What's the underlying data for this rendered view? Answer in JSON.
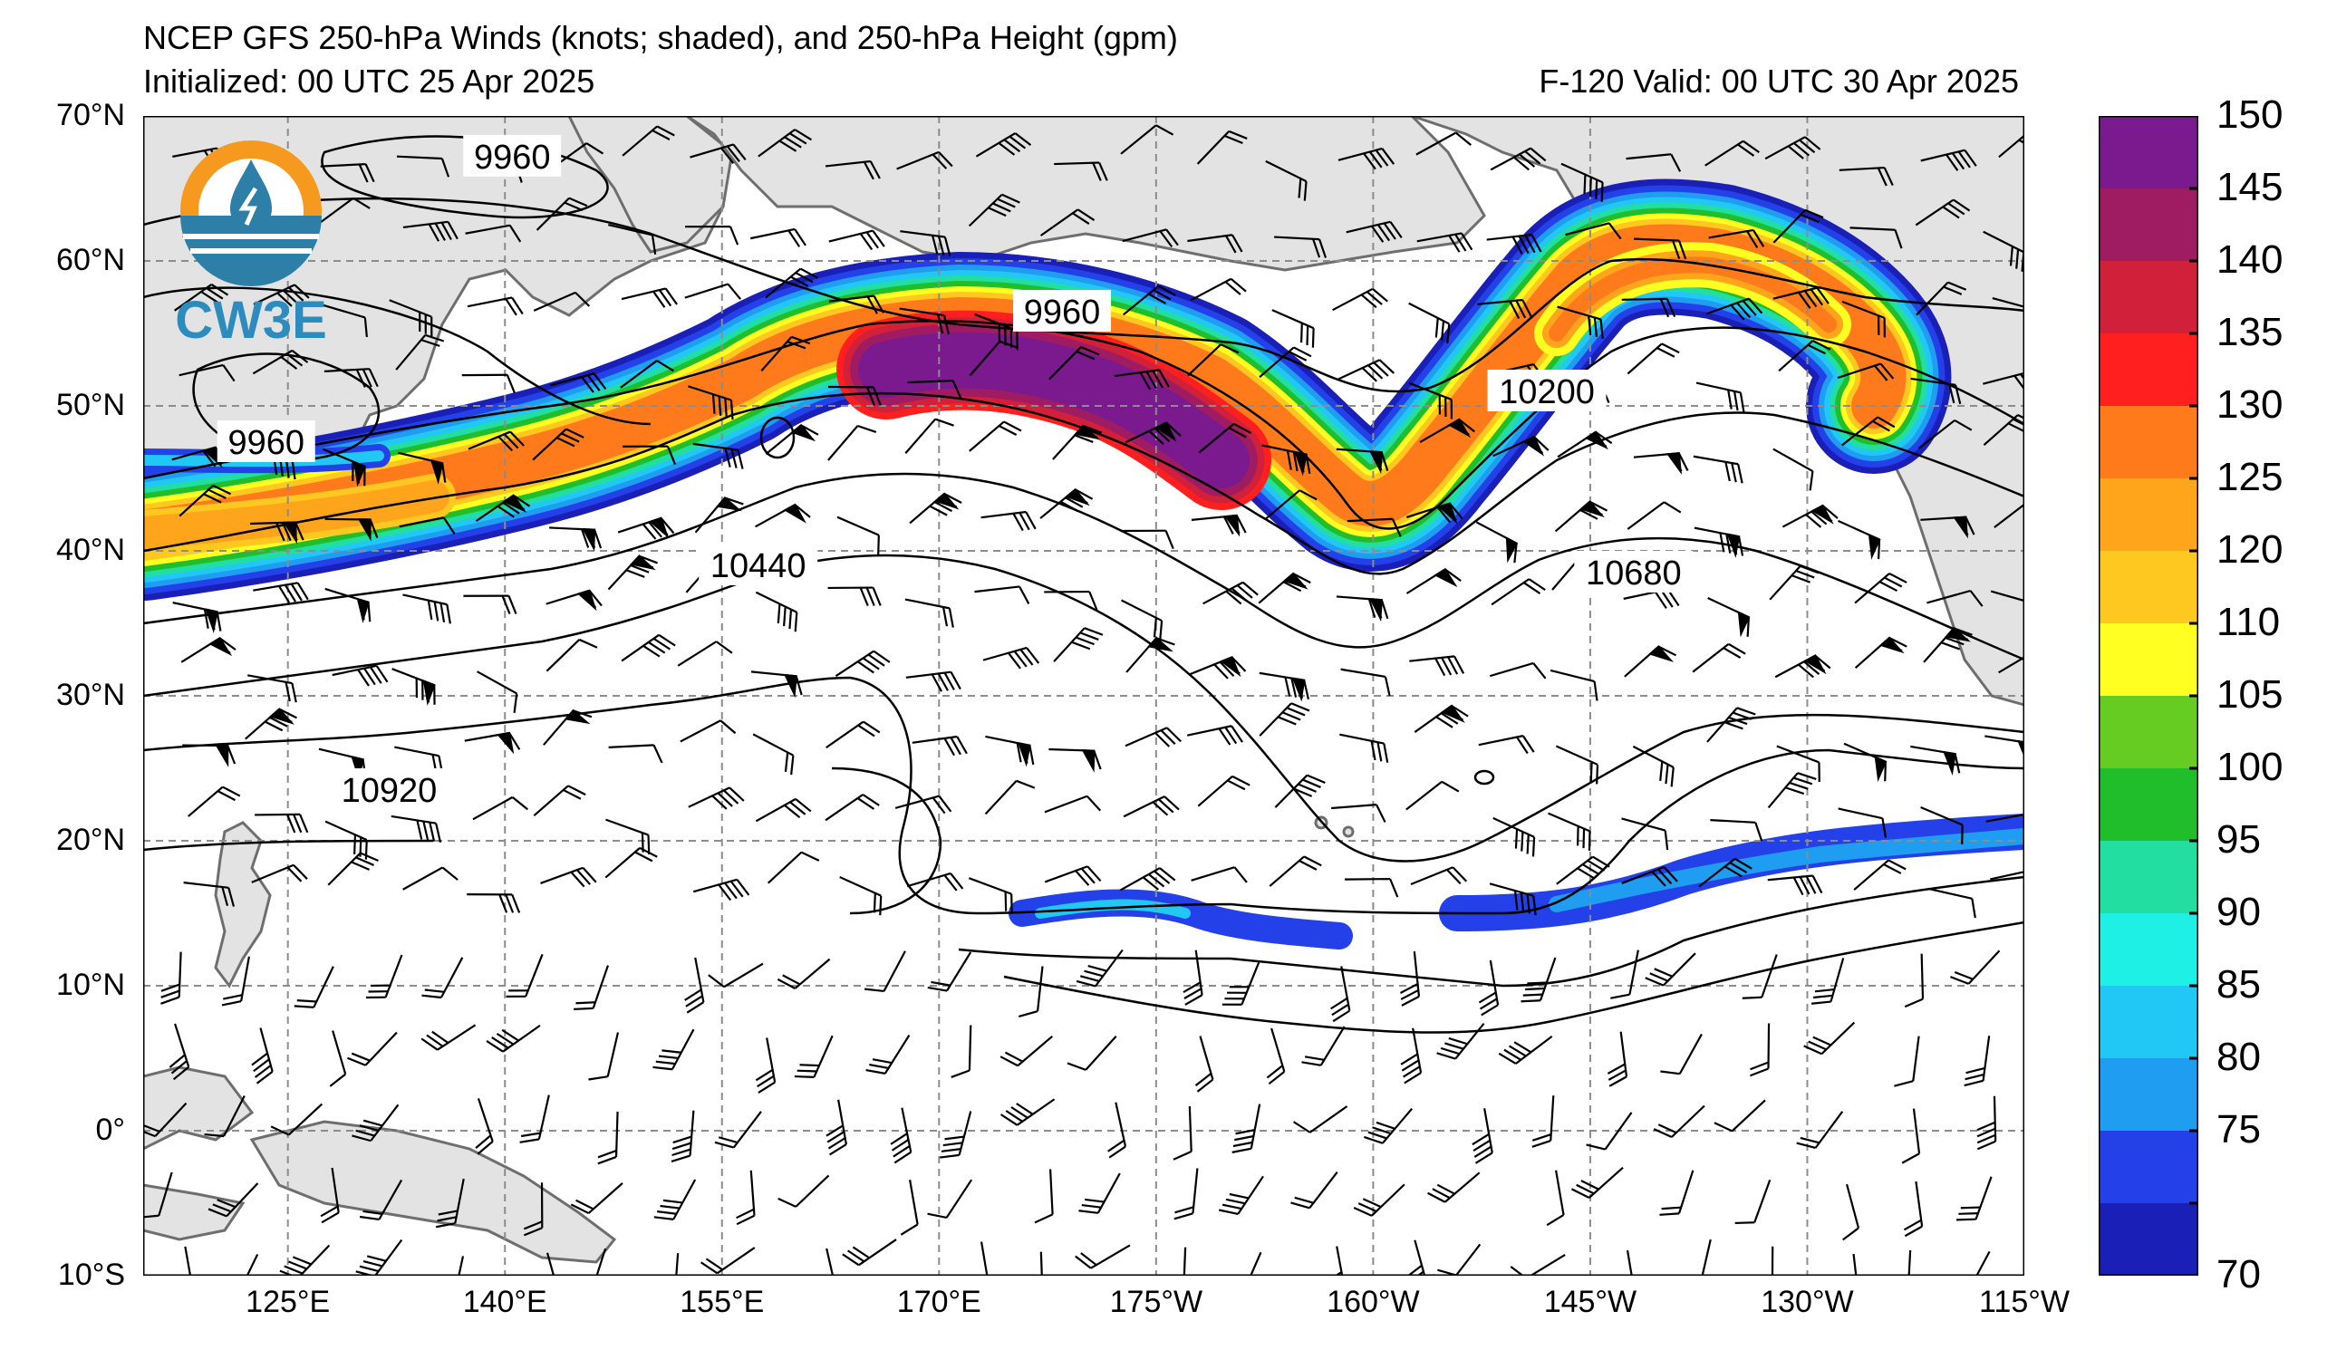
{
  "header": {
    "title_line1": "NCEP GFS 250-hPa Winds (knots; shaded), and 250-hPa Height (gpm)",
    "title_line2": "Initialized: 00 UTC 25 Apr 2025",
    "valid_text": "F-120  Valid: 00 UTC 30 Apr 2025"
  },
  "logo": {
    "text": "CW3E"
  },
  "axes": {
    "lat_labels": [
      "70°N",
      "60°N",
      "50°N",
      "40°N",
      "30°N",
      "20°N",
      "10°N",
      "0°",
      "10°S"
    ],
    "lat_values": [
      70,
      60,
      50,
      40,
      30,
      20,
      10,
      0,
      -10
    ],
    "lon_labels": [
      "125°E",
      "140°E",
      "155°E",
      "170°E",
      "175°W",
      "160°W",
      "145°W",
      "130°W",
      "115°W"
    ],
    "lon_values": [
      125,
      140,
      155,
      170,
      185,
      200,
      215,
      230,
      245
    ],
    "lon_range": [
      115,
      245
    ],
    "lat_range": [
      -10,
      70
    ]
  },
  "contour_labels": [
    {
      "text": "9960",
      "lon": 140.5,
      "lat": 67.2
    },
    {
      "text": "9960",
      "lon": 123.5,
      "lat": 47.5
    },
    {
      "text": "9960",
      "lon": 178.5,
      "lat": 56.5
    },
    {
      "text": "10200",
      "lon": 212,
      "lat": 51
    },
    {
      "text": "10440",
      "lon": 157.5,
      "lat": 39
    },
    {
      "text": "10680",
      "lon": 218,
      "lat": 38.5
    },
    {
      "text": "10920",
      "lon": 132,
      "lat": 23.5
    }
  ],
  "colorbar": {
    "labels": [
      "70",
      "75",
      "80",
      "85",
      "90",
      "95",
      "100",
      "105",
      "110",
      "120",
      "125",
      "130",
      "135",
      "140",
      "145",
      "150"
    ],
    "colors": [
      "#1a1fb8",
      "#2440e8",
      "#1f9df0",
      "#22c8f5",
      "#1ff0e6",
      "#22dea0",
      "#1fbe2a",
      "#66cc22",
      "#ffff22",
      "#ffc820",
      "#ffa51c",
      "#ff7a1a",
      "#ff1f1f",
      "#d0203a",
      "#a01c62",
      "#7a1a8e"
    ]
  },
  "colors": {
    "land": "#e3e3e3",
    "coast": "#6e6e6e",
    "grid": "#8c8c8c",
    "contour": "#000000"
  }
}
